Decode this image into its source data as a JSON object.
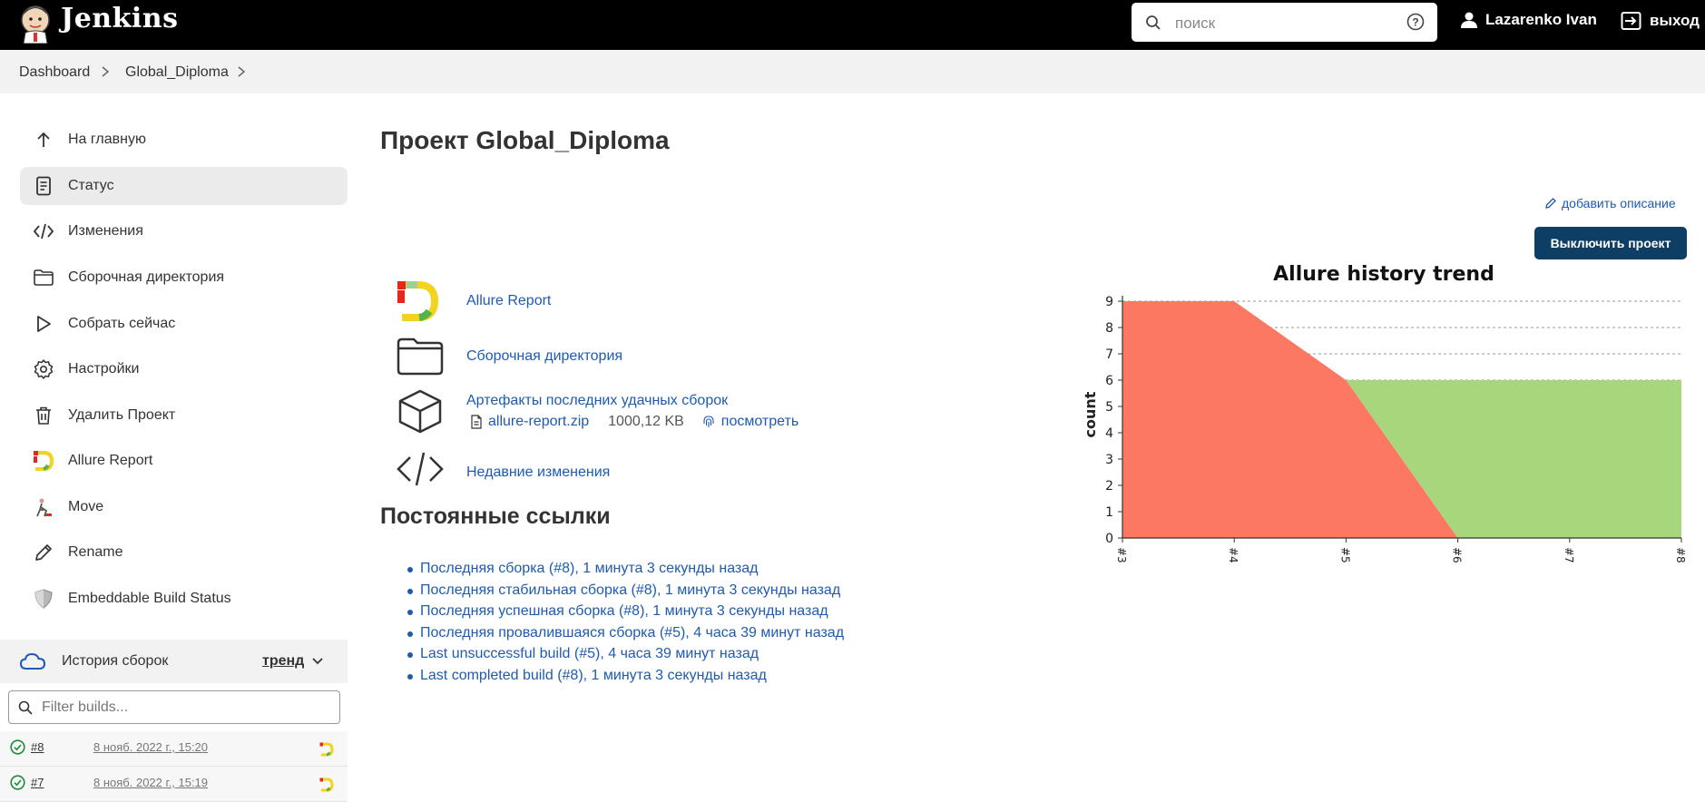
{
  "header": {
    "brand": "Jenkins",
    "search_placeholder": "поиск",
    "user_name": "Lazarenko Ivan",
    "logout_label": "выход"
  },
  "breadcrumb": [
    "Dashboard",
    "Global_Diploma"
  ],
  "sidebar": {
    "items": [
      {
        "label": "На главную",
        "icon": "arrow-up-icon"
      },
      {
        "label": "Статус",
        "icon": "document-icon"
      },
      {
        "label": "Изменения",
        "icon": "code-icon"
      },
      {
        "label": "Сборочная директория",
        "icon": "folder-icon"
      },
      {
        "label": "Собрать сейчас",
        "icon": "play-icon"
      },
      {
        "label": "Настройки",
        "icon": "gear-icon"
      },
      {
        "label": "Удалить Проект",
        "icon": "trash-icon"
      },
      {
        "label": "Allure Report",
        "icon": "allure-icon"
      },
      {
        "label": "Move",
        "icon": "move-icon"
      },
      {
        "label": "Rename",
        "icon": "pencil-icon"
      },
      {
        "label": "Embeddable Build Status",
        "icon": "shield-icon"
      }
    ],
    "active_index": 1
  },
  "build_history": {
    "title": "История сборок",
    "trend_label": "тренд",
    "filter_placeholder": "Filter builds...",
    "builds": [
      {
        "number": "#8",
        "date": "8 нояб. 2022 г., 15:20"
      },
      {
        "number": "#7",
        "date": "8 нояб. 2022 г., 15:19"
      }
    ]
  },
  "main": {
    "title": "Проект Global_Diploma",
    "add_description": "добавить описание",
    "disable_button": "Выключить проект",
    "links": {
      "allure": "Allure Report",
      "workspace": "Сборочная директория",
      "artifacts": "Артефакты последних удачных сборок",
      "artifact_file": "allure-report.zip",
      "artifact_size": "1000,12 KB",
      "artifact_view": "посмотреть",
      "recent_changes": "Недавние изменения"
    },
    "permalinks_title": "Постоянные ссылки",
    "permalinks": [
      "Последняя сборка (#8), 1 минута 3 секунды назад",
      "Последняя стабильная сборка (#8), 1 минута 3 секунды назад",
      "Последняя успешная сборка (#8), 1 минута 3 секунды назад",
      "Последняя провалившаяся сборка (#5), 4 часа 39 минут назад",
      "Last unsuccessful build (#5), 4 часа 39 минут назад",
      "Last completed build (#8), 1 минута 3 секунды назад"
    ]
  },
  "chart_data": {
    "type": "area",
    "title": "Allure history trend",
    "ylabel": "count",
    "xlabel": "",
    "categories": [
      "#3",
      "#4",
      "#5",
      "#6",
      "#7",
      "#8"
    ],
    "ylim": [
      0,
      9
    ],
    "yticks": [
      0,
      1,
      2,
      3,
      4,
      5,
      6,
      7,
      8,
      9
    ],
    "grid": true,
    "series": [
      {
        "values": [
          9,
          9,
          6,
          0,
          0,
          0
        ],
        "color": "#fd7863"
      },
      {
        "values": [
          0,
          0,
          0,
          6,
          6,
          6
        ],
        "color": "#a8d67c"
      }
    ],
    "stacked": true
  }
}
